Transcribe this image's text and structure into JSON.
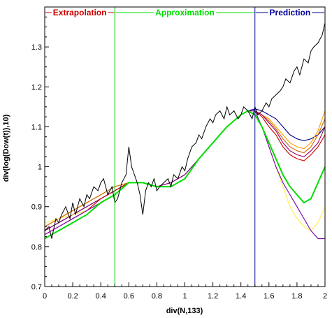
{
  "chart_data": {
    "type": "line",
    "xlabel": "div(N,133)",
    "ylabel": "div(log(Dow(t)),10)",
    "xlim": [
      0,
      2
    ],
    "ylim": [
      0.7,
      1.4
    ],
    "x_ticks": [
      "0",
      "0.2",
      "0.4",
      "0.6",
      "0.8",
      "1",
      "1.2",
      "1.4",
      "1.6",
      "1.8",
      "2"
    ],
    "y_ticks": [
      "0.7",
      "0.8",
      "0.9",
      "1",
      "1.1",
      "1.2",
      "1.3"
    ],
    "grid": false,
    "colors": {
      "extrapolation": "#cc0000",
      "approximation": "#00dd00",
      "prediction": "#000099",
      "divider_approx": "#00cc00",
      "divider_pred": "#000099"
    },
    "regions": [
      {
        "label": "Extrapolation",
        "x_start": 0,
        "x_end": 0.5,
        "color": "#cc0000"
      },
      {
        "label": "Approximation",
        "x_start": 0.5,
        "x_end": 1.5,
        "color": "#00dd00"
      },
      {
        "label": "Prediction",
        "x_start": 1.5,
        "x_end": 2,
        "color": "#000099"
      }
    ],
    "dividers": [
      0.5,
      1.5
    ],
    "observed": {
      "color": "#000000",
      "x": [
        0.0,
        0.03,
        0.05,
        0.08,
        0.1,
        0.12,
        0.15,
        0.18,
        0.2,
        0.22,
        0.25,
        0.28,
        0.3,
        0.32,
        0.35,
        0.38,
        0.4,
        0.42,
        0.45,
        0.48,
        0.5,
        0.52,
        0.55,
        0.58,
        0.6,
        0.62,
        0.64,
        0.66,
        0.68,
        0.7,
        0.72,
        0.74,
        0.76,
        0.78,
        0.8,
        0.82,
        0.85,
        0.88,
        0.9,
        0.92,
        0.95,
        0.98,
        1.0,
        1.02,
        1.05,
        1.08,
        1.1,
        1.12,
        1.15,
        1.18,
        1.2,
        1.22,
        1.25,
        1.28,
        1.3,
        1.32,
        1.35,
        1.38,
        1.4,
        1.42,
        1.45,
        1.48,
        1.5,
        1.52,
        1.55,
        1.58,
        1.6,
        1.62,
        1.65,
        1.68,
        1.7,
        1.72,
        1.75,
        1.78,
        1.8,
        1.82,
        1.85,
        1.88,
        1.9,
        1.92,
        1.95,
        1.98,
        2.0
      ],
      "y": [
        0.84,
        0.85,
        0.82,
        0.87,
        0.86,
        0.88,
        0.9,
        0.87,
        0.91,
        0.88,
        0.92,
        0.9,
        0.93,
        0.92,
        0.95,
        0.94,
        0.96,
        0.97,
        0.93,
        0.95,
        0.91,
        0.92,
        0.96,
        0.98,
        1.05,
        1.0,
        0.98,
        0.96,
        0.93,
        0.88,
        0.94,
        0.96,
        0.95,
        0.97,
        0.94,
        0.95,
        0.96,
        0.97,
        0.95,
        0.98,
        0.97,
        1.0,
        0.99,
        1.02,
        1.05,
        1.06,
        1.08,
        1.07,
        1.1,
        1.12,
        1.11,
        1.13,
        1.14,
        1.12,
        1.15,
        1.13,
        1.14,
        1.12,
        1.13,
        1.15,
        1.14,
        1.12,
        1.15,
        1.13,
        1.14,
        1.16,
        1.15,
        1.17,
        1.18,
        1.19,
        1.2,
        1.22,
        1.21,
        1.24,
        1.25,
        1.23,
        1.27,
        1.26,
        1.29,
        1.3,
        1.31,
        1.33,
        1.36
      ]
    },
    "series_x": [
      0.0,
      0.1,
      0.2,
      0.3,
      0.4,
      0.5,
      0.6,
      0.7,
      0.8,
      0.9,
      1.0,
      1.1,
      1.2,
      1.3,
      1.4,
      1.45,
      1.5,
      1.55,
      1.6,
      1.65,
      1.7,
      1.75,
      1.8,
      1.85,
      1.9,
      1.95,
      2.0
    ],
    "series": [
      {
        "color": "#000088",
        "values": [
          0.84,
          0.86,
          0.88,
          0.9,
          0.92,
          0.94,
          0.96,
          0.96,
          0.95,
          0.96,
          0.98,
          1.02,
          1.06,
          1.1,
          1.13,
          1.14,
          1.145,
          1.14,
          1.13,
          1.12,
          1.1,
          1.08,
          1.07,
          1.065,
          1.07,
          1.08,
          1.1
        ]
      },
      {
        "color": "#ff9900",
        "values": [
          0.85,
          0.87,
          0.89,
          0.91,
          0.93,
          0.95,
          0.96,
          0.96,
          0.95,
          0.96,
          0.98,
          1.02,
          1.06,
          1.1,
          1.13,
          1.14,
          1.14,
          1.13,
          1.12,
          1.1,
          1.08,
          1.06,
          1.05,
          1.045,
          1.06,
          1.09,
          1.14
        ]
      },
      {
        "color": "#cc6600",
        "values": [
          0.85,
          0.87,
          0.89,
          0.91,
          0.93,
          0.95,
          0.96,
          0.96,
          0.95,
          0.96,
          0.98,
          1.02,
          1.06,
          1.1,
          1.13,
          1.14,
          1.14,
          1.13,
          1.115,
          1.095,
          1.07,
          1.05,
          1.04,
          1.035,
          1.05,
          1.08,
          1.12
        ]
      },
      {
        "color": "#990066",
        "values": [
          0.84,
          0.86,
          0.88,
          0.9,
          0.92,
          0.94,
          0.96,
          0.96,
          0.95,
          0.96,
          0.98,
          1.02,
          1.06,
          1.1,
          1.13,
          1.14,
          1.14,
          1.13,
          1.11,
          1.09,
          1.06,
          1.04,
          1.03,
          1.025,
          1.04,
          1.06,
          1.1
        ]
      },
      {
        "color": "#cc0000",
        "values": [
          0.83,
          0.85,
          0.87,
          0.89,
          0.92,
          0.94,
          0.96,
          0.96,
          0.95,
          0.96,
          0.98,
          1.02,
          1.06,
          1.1,
          1.13,
          1.14,
          1.14,
          1.125,
          1.1,
          1.08,
          1.05,
          1.03,
          1.02,
          1.015,
          1.03,
          1.05,
          1.08
        ]
      },
      {
        "color": "#ffee44",
        "values": [
          0.86,
          0.87,
          0.88,
          0.89,
          0.91,
          0.93,
          0.96,
          0.96,
          0.95,
          0.96,
          0.98,
          1.02,
          1.06,
          1.1,
          1.13,
          1.14,
          1.14,
          1.1,
          1.05,
          1.0,
          0.95,
          0.9,
          0.87,
          0.85,
          0.84,
          0.86,
          0.9
        ]
      },
      {
        "color": "#7700aa",
        "values": [
          0.83,
          0.85,
          0.87,
          0.89,
          0.91,
          0.93,
          0.96,
          0.96,
          0.95,
          0.96,
          0.98,
          1.02,
          1.06,
          1.1,
          1.13,
          1.14,
          1.14,
          1.1,
          1.05,
          1.0,
          0.96,
          0.93,
          0.9,
          0.87,
          0.84,
          0.82,
          0.82
        ]
      },
      {
        "color": "#00dd00",
        "values": [
          0.82,
          0.84,
          0.86,
          0.88,
          0.91,
          0.93,
          0.96,
          0.96,
          0.95,
          0.95,
          0.97,
          1.02,
          1.06,
          1.1,
          1.13,
          1.14,
          1.13,
          1.1,
          1.06,
          1.02,
          0.98,
          0.95,
          0.93,
          0.91,
          0.92,
          0.96,
          1.0
        ]
      }
    ]
  }
}
